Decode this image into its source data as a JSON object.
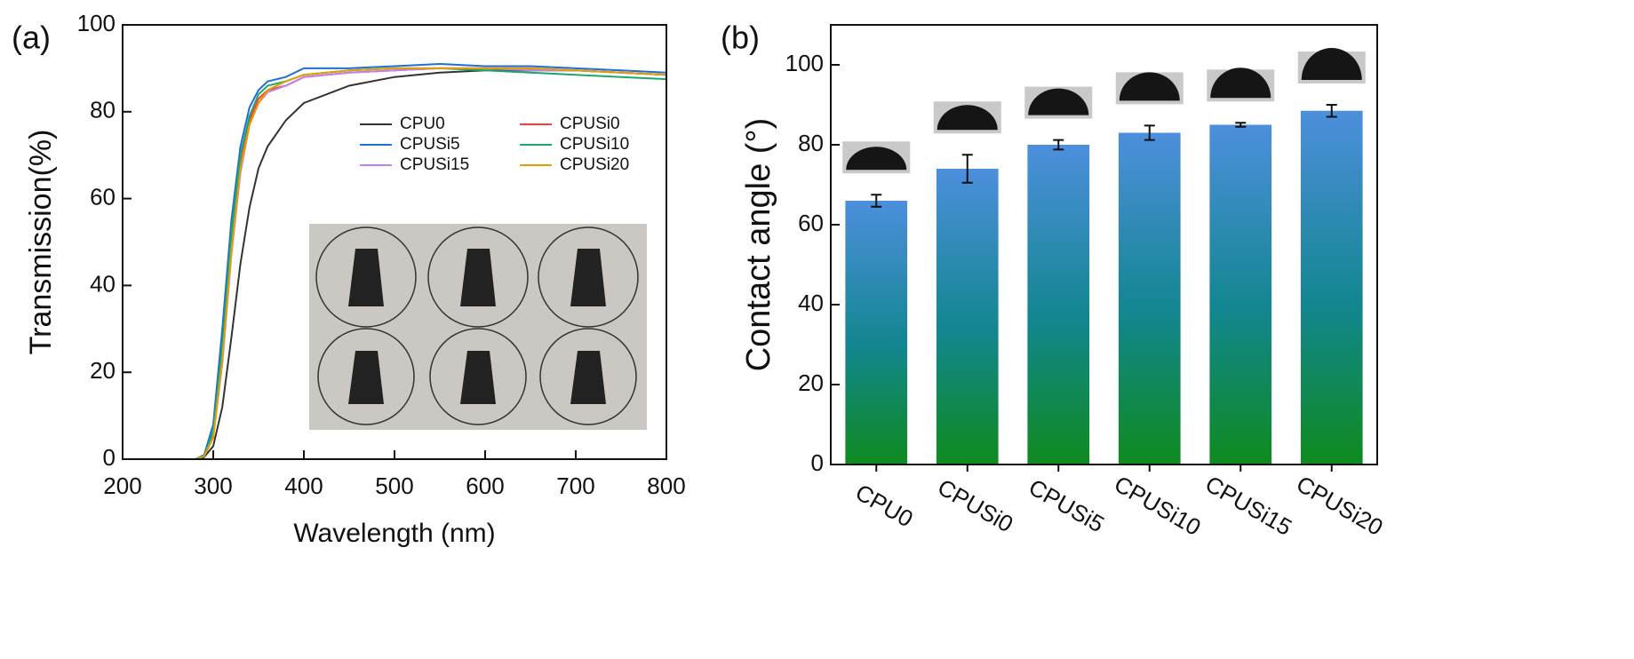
{
  "chart_data": [
    {
      "type": "line",
      "title": "(a)",
      "x_label": "Wavelength (nm)",
      "y_label": "Transmission(%)",
      "x": [
        200,
        250,
        280,
        290,
        300,
        310,
        320,
        330,
        340,
        350,
        360,
        380,
        400,
        450,
        500,
        550,
        600,
        650,
        700,
        750,
        800
      ],
      "series": [
        {
          "name": "CPU0",
          "color": "#333333",
          "values": [
            0,
            0,
            0,
            0.5,
            3,
            12,
            28,
            45,
            58,
            67,
            72,
            78,
            82,
            86,
            88,
            89,
            89.5,
            89.5,
            89.5,
            89,
            88.5
          ]
        },
        {
          "name": "CPUSi0",
          "color": "#ff3b3b",
          "values": [
            0,
            0,
            0,
            0.8,
            6,
            25,
            50,
            68,
            78,
            83,
            85,
            86,
            88,
            89,
            89.5,
            90,
            90,
            90,
            89.5,
            89,
            88.5
          ]
        },
        {
          "name": "CPUSi5",
          "color": "#1f6fd6",
          "values": [
            0,
            0,
            0,
            1,
            8,
            30,
            55,
            72,
            81,
            85,
            87,
            88,
            90,
            90,
            90.5,
            91,
            90.5,
            90.5,
            90,
            89.5,
            89
          ]
        },
        {
          "name": "CPUSi10",
          "color": "#1aa86a",
          "values": [
            0,
            0,
            0,
            0.8,
            6.5,
            26,
            52,
            70,
            79,
            84,
            86,
            87,
            88.5,
            89.5,
            90,
            90,
            89.5,
            89,
            88.5,
            88,
            87.5
          ]
        },
        {
          "name": "CPUSi15",
          "color": "#c080f0",
          "values": [
            0,
            0,
            0,
            0.7,
            5,
            22,
            47,
            66,
            77,
            82,
            84.5,
            86,
            88,
            89,
            89.5,
            90,
            90,
            89.5,
            89.5,
            89,
            88.5
          ]
        },
        {
          "name": "CPUSi20",
          "color": "#e0a000",
          "values": [
            0,
            0,
            0,
            0.7,
            5,
            23,
            48,
            67,
            77,
            82,
            85,
            87,
            88.5,
            89.5,
            90,
            90,
            90,
            90,
            89.5,
            89,
            88.5
          ]
        }
      ],
      "xlim": [
        200,
        800
      ],
      "xticks": [
        200,
        300,
        400,
        500,
        600,
        700,
        800
      ],
      "ylim": [
        0,
        100
      ],
      "yticks": [
        0,
        20,
        40,
        60,
        80,
        100
      ]
    },
    {
      "type": "bar",
      "title": "(b)",
      "y_label": "Contact angle (°)",
      "categories": [
        "CPU0",
        "CPUSi0",
        "CPUSi5",
        "CPUSi10",
        "CPUSi15",
        "CPUSi20"
      ],
      "values": [
        66,
        74,
        80,
        83,
        85,
        88.5
      ],
      "errors": [
        1.5,
        3.5,
        1.2,
        1.8,
        0.5,
        1.5
      ],
      "gradient": [
        "#4d8fdd",
        "#0f8a1e"
      ],
      "ylim": [
        0,
        110
      ],
      "yticks": [
        0,
        20,
        40,
        60,
        80,
        100
      ]
    }
  ]
}
